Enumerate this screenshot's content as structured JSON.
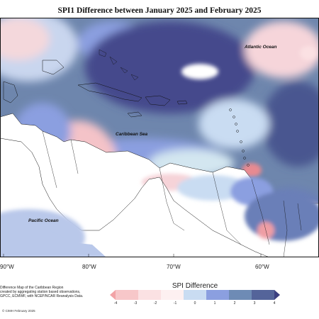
{
  "title": "SPI1 Difference between January 2025 and February 2025",
  "map": {
    "labels": {
      "atlantic": "Atlantic Ocean",
      "caribbean": "Caribbean Sea",
      "pacific": "Pacific Ocean"
    },
    "longitude_labels": [
      "90°W",
      "80°W",
      "70°W",
      "60°W"
    ]
  },
  "notes": {
    "line1": "Difference Map of the Caribbean Region",
    "line2": "created by aggregating station based observations,",
    "line3": "GPCC, ECMWF, with NCEP/NCAR Reanalysis Data.",
    "copyright": "© CIMH February 2025"
  },
  "colorbar": {
    "title": "SPI Difference",
    "ticks": [
      "-4",
      "-3",
      "-2",
      "-1",
      "0",
      "1",
      "2",
      "3",
      "4"
    ],
    "colors": [
      "#f2a3a6",
      "#f7c7c9",
      "#fbe1e3",
      "#fdf0f1",
      "#c9dcf2",
      "#8b9fe0",
      "#6e8bb5",
      "#54649a",
      "#3b3f80"
    ]
  }
}
